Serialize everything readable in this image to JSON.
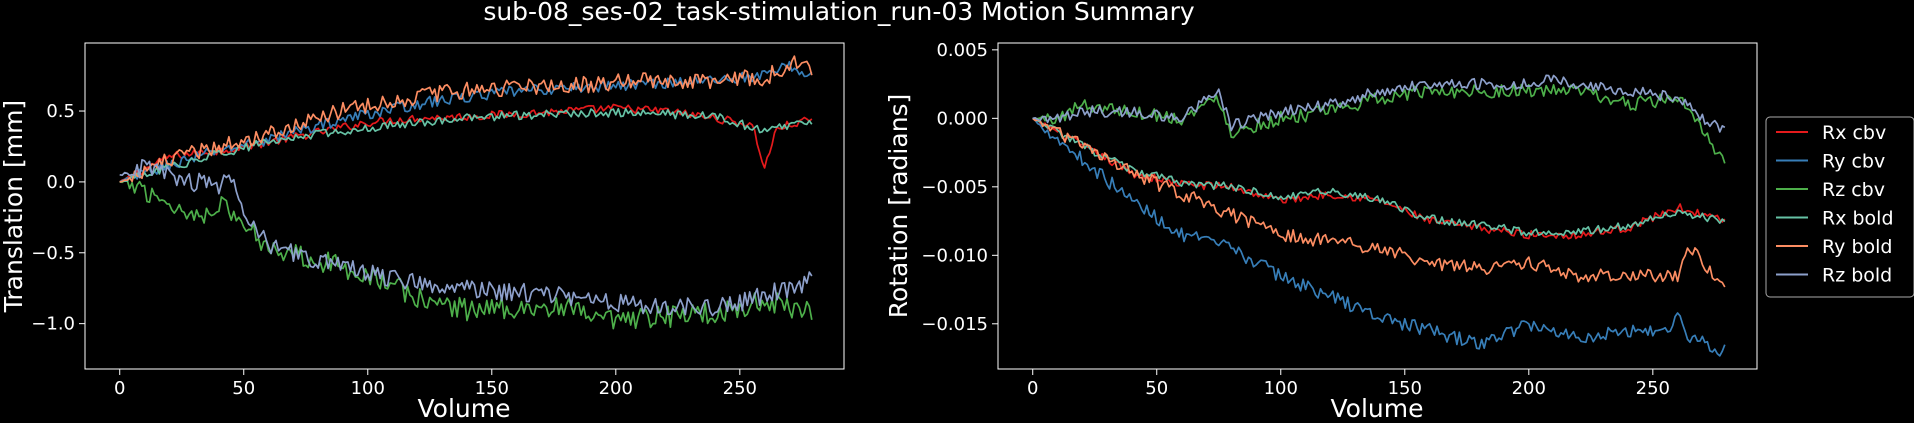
{
  "figure": {
    "title": "sub-08_ses-02_task-stimulation_run-03 Motion Summary",
    "background": "#000000",
    "foreground": "#ffffff"
  },
  "chart_data": [
    {
      "type": "line",
      "title": "",
      "xlabel": "Volume",
      "ylabel": "Translation [mm]",
      "xlim": [
        -14,
        292
      ],
      "ylim": [
        -1.32,
        0.98
      ],
      "xticks": [
        0,
        50,
        100,
        150,
        200,
        250
      ],
      "xtick_labels": [
        "0",
        "50",
        "100",
        "150",
        "200",
        "250"
      ],
      "yticks": [
        -1.0,
        -0.5,
        0.0,
        0.5
      ],
      "ytick_labels": [
        "−1.0",
        "−0.5",
        "0.0",
        "0.5"
      ],
      "grid": false,
      "legend": false,
      "n_volumes": 280,
      "series": [
        {
          "color": "#e41a1c",
          "x": [
            0,
            20,
            40,
            60,
            80,
            100,
            120,
            140,
            160,
            180,
            200,
            220,
            240,
            255,
            260,
            265,
            279
          ],
          "values": [
            0.0,
            0.18,
            0.22,
            0.28,
            0.35,
            0.42,
            0.45,
            0.46,
            0.48,
            0.5,
            0.52,
            0.5,
            0.45,
            0.4,
            0.1,
            0.38,
            0.44
          ],
          "noise": 0.03
        },
        {
          "color": "#377eb8",
          "x": [
            0,
            20,
            40,
            60,
            80,
            100,
            120,
            140,
            160,
            180,
            200,
            220,
            240,
            260,
            270,
            279
          ],
          "values": [
            0.0,
            0.12,
            0.22,
            0.3,
            0.4,
            0.48,
            0.55,
            0.6,
            0.64,
            0.66,
            0.68,
            0.7,
            0.72,
            0.75,
            0.82,
            0.75
          ],
          "noise": 0.04
        },
        {
          "color": "#4daf4a",
          "x": [
            0,
            10,
            20,
            30,
            40,
            50,
            60,
            80,
            100,
            120,
            140,
            160,
            180,
            200,
            220,
            240,
            260,
            279
          ],
          "values": [
            0.0,
            -0.05,
            -0.15,
            -0.25,
            -0.15,
            -0.3,
            -0.45,
            -0.55,
            -0.65,
            -0.82,
            -0.9,
            -0.88,
            -0.9,
            -1.0,
            -0.95,
            -0.92,
            -0.85,
            -0.9
          ],
          "noise": 0.08
        },
        {
          "color": "#66c2a5",
          "x": [
            0,
            20,
            40,
            60,
            80,
            100,
            120,
            140,
            160,
            180,
            200,
            220,
            240,
            260,
            279
          ],
          "values": [
            0.0,
            0.1,
            0.2,
            0.28,
            0.34,
            0.38,
            0.42,
            0.45,
            0.47,
            0.48,
            0.49,
            0.48,
            0.46,
            0.36,
            0.42
          ],
          "noise": 0.03
        },
        {
          "color": "#fc8d62",
          "x": [
            0,
            20,
            40,
            60,
            80,
            100,
            120,
            140,
            160,
            180,
            200,
            220,
            240,
            260,
            275,
            279
          ],
          "values": [
            0.0,
            0.15,
            0.25,
            0.35,
            0.45,
            0.55,
            0.6,
            0.65,
            0.67,
            0.68,
            0.7,
            0.72,
            0.72,
            0.74,
            0.85,
            0.75
          ],
          "noise": 0.06
        },
        {
          "color": "#8da0cb",
          "x": [
            0,
            10,
            20,
            30,
            40,
            45,
            50,
            60,
            80,
            100,
            120,
            140,
            160,
            180,
            200,
            220,
            240,
            260,
            279
          ],
          "values": [
            0.05,
            0.1,
            0.05,
            0.0,
            -0.05,
            0.05,
            -0.2,
            -0.45,
            -0.55,
            -0.65,
            -0.7,
            -0.75,
            -0.78,
            -0.8,
            -0.85,
            -0.88,
            -0.9,
            -0.8,
            -0.7
          ],
          "noise": 0.07
        }
      ]
    },
    {
      "type": "line",
      "title": "",
      "xlabel": "Volume",
      "ylabel": "Rotation [radians]",
      "xlim": [
        -14,
        292
      ],
      "ylim": [
        -0.0183,
        0.0055
      ],
      "xticks": [
        0,
        50,
        100,
        150,
        200,
        250
      ],
      "xtick_labels": [
        "0",
        "50",
        "100",
        "150",
        "200",
        "250"
      ],
      "yticks": [
        0.005,
        0.0,
        -0.005,
        -0.01,
        -0.015
      ],
      "ytick_labels": [
        "0.005",
        "0.000",
        "−0.005",
        "−0.010",
        "−0.015"
      ],
      "grid": false,
      "legend": true,
      "legend_position": "center-right-outside",
      "n_volumes": 280,
      "series": [
        {
          "name": "Rx cbv",
          "color": "#e41a1c",
          "x": [
            0,
            20,
            40,
            60,
            80,
            100,
            120,
            140,
            160,
            180,
            200,
            220,
            240,
            260,
            279
          ],
          "values": [
            0.0,
            -0.002,
            -0.004,
            -0.0048,
            -0.005,
            -0.006,
            -0.0055,
            -0.006,
            -0.0075,
            -0.008,
            -0.0085,
            -0.0085,
            -0.008,
            -0.0065,
            -0.0075
          ],
          "noise": 0.0003
        },
        {
          "name": "Ry cbv",
          "color": "#377eb8",
          "x": [
            0,
            20,
            40,
            60,
            80,
            100,
            120,
            140,
            160,
            180,
            200,
            220,
            240,
            255,
            260,
            265,
            279
          ],
          "values": [
            0.0,
            -0.003,
            -0.006,
            -0.0085,
            -0.0095,
            -0.0115,
            -0.013,
            -0.0145,
            -0.0155,
            -0.0165,
            -0.015,
            -0.016,
            -0.0155,
            -0.0155,
            -0.0145,
            -0.016,
            -0.017
          ],
          "noise": 0.0005
        },
        {
          "name": "Rz cbv",
          "color": "#4daf4a",
          "x": [
            0,
            10,
            20,
            40,
            60,
            75,
            80,
            100,
            120,
            140,
            160,
            180,
            200,
            220,
            240,
            260,
            270,
            279
          ],
          "values": [
            0.0,
            0.0,
            0.001,
            0.0005,
            0.0,
            0.0015,
            -0.001,
            0.0,
            0.0005,
            0.0015,
            0.002,
            0.002,
            0.002,
            0.002,
            0.001,
            0.0015,
            -0.001,
            -0.003
          ],
          "noise": 0.0005
        },
        {
          "name": "Rx bold",
          "color": "#66c2a5",
          "x": [
            0,
            20,
            40,
            60,
            80,
            100,
            120,
            140,
            160,
            180,
            200,
            220,
            240,
            260,
            279
          ],
          "values": [
            0.0,
            -0.002,
            -0.0038,
            -0.0047,
            -0.005,
            -0.0058,
            -0.0053,
            -0.006,
            -0.0073,
            -0.0078,
            -0.0083,
            -0.0083,
            -0.0078,
            -0.0068,
            -0.0075
          ],
          "noise": 0.0003
        },
        {
          "name": "Ry bold",
          "color": "#fc8d62",
          "x": [
            0,
            20,
            40,
            60,
            80,
            100,
            120,
            140,
            160,
            180,
            200,
            220,
            240,
            260,
            265,
            279
          ],
          "values": [
            0.0,
            -0.002,
            -0.004,
            -0.0055,
            -0.007,
            -0.0085,
            -0.009,
            -0.0095,
            -0.0105,
            -0.011,
            -0.0105,
            -0.0115,
            -0.0115,
            -0.0115,
            -0.0095,
            -0.0125
          ],
          "noise": 0.0005
        },
        {
          "name": "Rz bold",
          "color": "#8da0cb",
          "x": [
            0,
            10,
            20,
            40,
            60,
            75,
            80,
            100,
            120,
            140,
            160,
            180,
            200,
            210,
            220,
            240,
            260,
            270,
            279
          ],
          "values": [
            0.0,
            0.0,
            0.0005,
            0.0005,
            0.0,
            0.002,
            -0.0005,
            0.0005,
            0.001,
            0.002,
            0.0025,
            0.0025,
            0.0025,
            0.003,
            0.0025,
            0.002,
            0.0015,
            0.0,
            -0.001
          ],
          "noise": 0.0004
        }
      ]
    }
  ]
}
